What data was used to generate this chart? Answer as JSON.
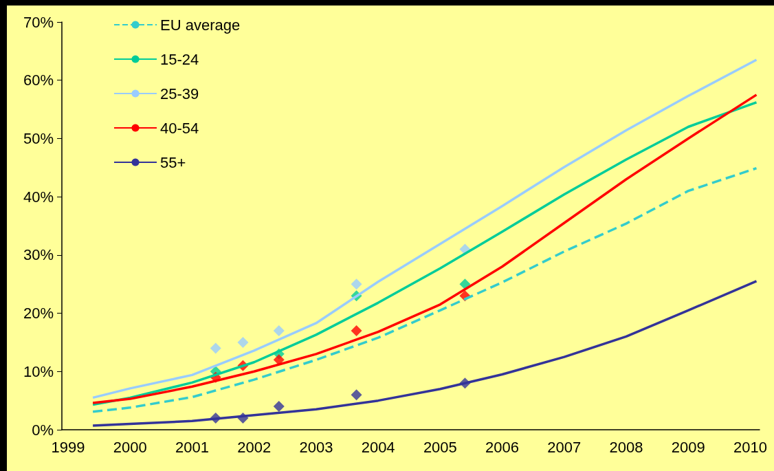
{
  "chart_data": {
    "type": "line",
    "xlim": [
      1998.9,
      2010.15
    ],
    "xticks": [
      1999,
      2000,
      2001,
      2002,
      2003,
      2004,
      2005,
      2006,
      2007,
      2008,
      2009,
      2010
    ],
    "ylim": [
      0,
      70
    ],
    "yticks": [
      {
        "value": 0,
        "label": "0%"
      },
      {
        "value": 10,
        "label": "10%"
      },
      {
        "value": 20,
        "label": "20%"
      },
      {
        "value": 30,
        "label": "30%"
      },
      {
        "value": 40,
        "label": "40%"
      },
      {
        "value": 50,
        "label": "50%"
      },
      {
        "value": 60,
        "label": "60%"
      },
      {
        "value": 70,
        "label": "70%"
      }
    ],
    "grid": false,
    "legend": "top left",
    "marker": "none",
    "series": [
      {
        "name": "EU average",
        "color": "#33cccc",
        "line_style": "dashed",
        "x": [
          1999.4,
          2000,
          2001,
          2002,
          2003,
          2004,
          2005,
          2006,
          2007,
          2008,
          2009,
          2010.1
        ],
        "values": [
          3.1,
          3.8,
          5.6,
          8.6,
          12,
          15.8,
          20.5,
          25.3,
          30.6,
          35.4,
          41,
          44.9
        ]
      },
      {
        "name": "15-24",
        "color": "#00cc99",
        "line_style": "solid",
        "x": [
          1999.4,
          2000,
          2001,
          2002,
          2003,
          2004,
          2005,
          2006,
          2007,
          2008,
          2009,
          2010.1
        ],
        "values": [
          4.3,
          5.5,
          8.1,
          11.6,
          16.3,
          21.8,
          27.7,
          34,
          40.4,
          46.4,
          52,
          56.2
        ]
      },
      {
        "name": "25-39",
        "color": "#99ccff",
        "line_style": "solid",
        "x": [
          1999.4,
          2000,
          2001,
          2002,
          2003,
          2004,
          2005,
          2006,
          2007,
          2008,
          2009,
          2010.1
        ],
        "values": [
          5.5,
          7.1,
          9.4,
          13.6,
          18.3,
          25.4,
          31.9,
          38.4,
          45.1,
          51.4,
          57.3,
          63.5
        ]
      },
      {
        "name": "40-54",
        "color": "#ff0000",
        "line_style": "solid",
        "x": [
          1999.4,
          2000,
          2001,
          2002,
          2003,
          2004,
          2005,
          2006,
          2007,
          2008,
          2009,
          2010.1
        ],
        "values": [
          4.6,
          5.3,
          7.4,
          10,
          13,
          16.8,
          21.5,
          28,
          35.5,
          43,
          50,
          57.5
        ]
      },
      {
        "name": "55+",
        "color": "#333399",
        "line_style": "solid",
        "x": [
          1999.4,
          2000,
          2001,
          2002,
          2003,
          2004,
          2005,
          2006,
          2007,
          2008,
          2009,
          2010.1
        ],
        "values": [
          0.7,
          1,
          1.5,
          2.5,
          3.5,
          5,
          7,
          9.5,
          12.5,
          16,
          20.5,
          25.5
        ]
      },
      {
        "type": "scatter",
        "marker": "diamond",
        "color": "#99ccff",
        "x": [
          2001.38,
          2001.82,
          2002.4,
          2003.65,
          2005.4
        ],
        "values": [
          14,
          15,
          17,
          25,
          31
        ]
      },
      {
        "type": "scatter",
        "marker": "diamond",
        "color": "#00cc99",
        "x": [
          2001.38,
          2001.82,
          2002.4,
          2003.65,
          2005.4
        ],
        "values": [
          10,
          null,
          13,
          23,
          25
        ]
      },
      {
        "type": "scatter",
        "marker": "diamond",
        "color": "#ff0000",
        "x": [
          2001.38,
          2001.82,
          2002.4,
          2003.65,
          2005.4
        ],
        "values": [
          9,
          11,
          12,
          17,
          23
        ]
      },
      {
        "type": "scatter",
        "marker": "diamond",
        "color": "#333399",
        "x": [
          2001.38,
          2001.82,
          2002.4,
          2003.65,
          2005.4
        ],
        "values": [
          2,
          2,
          4,
          6,
          8
        ]
      }
    ]
  }
}
